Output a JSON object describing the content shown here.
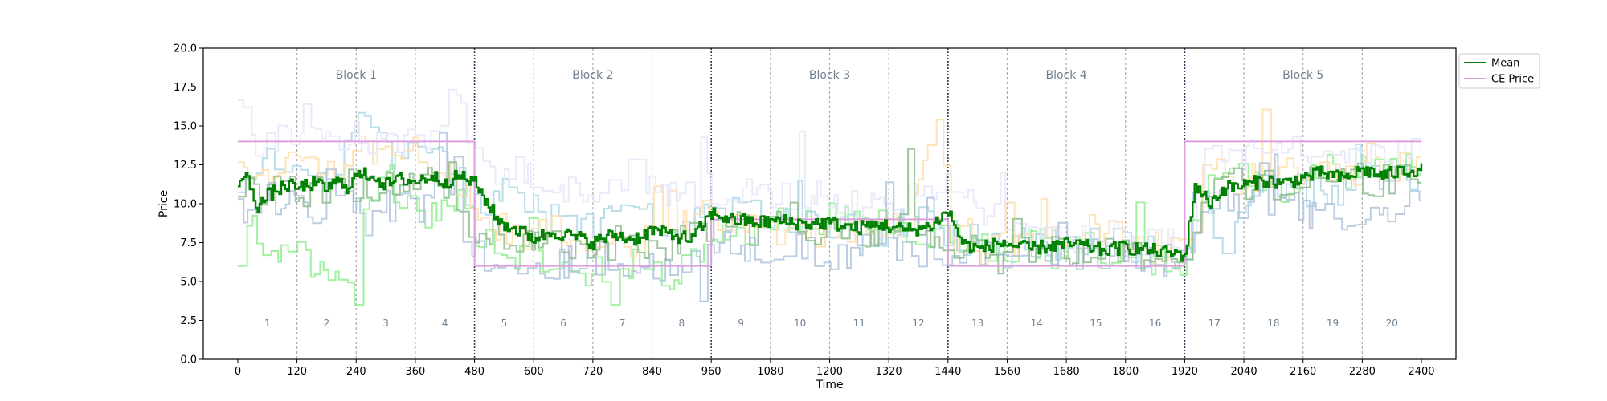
{
  "chart_data": {
    "type": "line",
    "xlabel": "Time",
    "ylabel": "Price",
    "xlim": [
      -70,
      2470
    ],
    "ylim": [
      0,
      20
    ],
    "xticks": [
      0,
      120,
      240,
      360,
      480,
      600,
      720,
      840,
      960,
      1080,
      1200,
      1320,
      1440,
      1560,
      1680,
      1800,
      1920,
      2040,
      2160,
      2280,
      2400
    ],
    "yticks": [
      0.0,
      2.5,
      5.0,
      7.5,
      10.0,
      12.5,
      15.0,
      17.5,
      20.0
    ],
    "ytick_labels": [
      "0.0",
      "2.5",
      "5.0",
      "7.5",
      "10.0",
      "12.5",
      "15.0",
      "17.5",
      "20.0"
    ],
    "grid": false,
    "legend_position": "upper-right-outside",
    "blocks": [
      {
        "label": "Block 1",
        "start": 0,
        "end": 480
      },
      {
        "label": "Block 2",
        "start": 480,
        "end": 960
      },
      {
        "label": "Block 3",
        "start": 960,
        "end": 1440
      },
      {
        "label": "Block 4",
        "start": 1440,
        "end": 1920
      },
      {
        "label": "Block 5",
        "start": 1920,
        "end": 2400
      }
    ],
    "periods": [
      "1",
      "2",
      "3",
      "4",
      "5",
      "6",
      "7",
      "8",
      "9",
      "10",
      "11",
      "12",
      "13",
      "14",
      "15",
      "16",
      "17",
      "18",
      "19",
      "20"
    ],
    "period_length": 120,
    "ce_price": [
      {
        "x": [
          0,
          480
        ],
        "y": [
          14,
          14
        ]
      },
      {
        "x": [
          480,
          960
        ],
        "y": [
          6,
          6
        ]
      },
      {
        "x": [
          960,
          1440
        ],
        "y": [
          9,
          9
        ]
      },
      {
        "x": [
          1440,
          1920
        ],
        "y": [
          6,
          6
        ]
      },
      {
        "x": [
          1920,
          2400
        ],
        "y": [
          14,
          14
        ]
      }
    ],
    "mean_anchors": {
      "x": [
        0,
        20,
        40,
        60,
        80,
        100,
        120,
        150,
        180,
        200,
        220,
        240,
        270,
        300,
        330,
        360,
        390,
        420,
        450,
        480,
        500,
        530,
        560,
        600,
        640,
        680,
        720,
        760,
        800,
        840,
        880,
        920,
        960,
        1000,
        1050,
        1100,
        1150,
        1200,
        1250,
        1300,
        1350,
        1400,
        1440,
        1470,
        1500,
        1550,
        1600,
        1650,
        1700,
        1750,
        1800,
        1850,
        1900,
        1920,
        1940,
        1970,
        2000,
        2040,
        2080,
        2120,
        2160,
        2200,
        2240,
        2280,
        2320,
        2360,
        2400
      ],
      "y": [
        11.5,
        11.6,
        9.8,
        10.5,
        10.9,
        11.2,
        11.0,
        11.3,
        11.0,
        11.4,
        11.1,
        11.8,
        11.9,
        11.2,
        11.6,
        11.4,
        11.8,
        11.4,
        11.8,
        11.3,
        10.3,
        8.8,
        8.4,
        7.8,
        8.2,
        7.9,
        7.5,
        8.0,
        7.7,
        8.3,
        8.0,
        7.7,
        9.4,
        9.0,
        8.8,
        8.9,
        8.7,
        8.8,
        8.4,
        8.7,
        8.3,
        8.5,
        9.5,
        7.4,
        7.1,
        7.5,
        7.1,
        7.3,
        7.4,
        7.0,
        7.2,
        7.0,
        6.8,
        6.7,
        11.2,
        10.0,
        11.0,
        11.2,
        11.5,
        11.3,
        11.7,
        12.0,
        11.6,
        12.2,
        11.8,
        12.1,
        12.2
      ]
    },
    "series": [
      {
        "name": "Mean",
        "color": "#008000"
      },
      {
        "name": "CE Price",
        "color": "#dda0dd"
      }
    ],
    "traders": [
      {
        "color": "#90ee90",
        "anchors": [
          [
            0,
            6.0
          ],
          [
            20,
            8.5
          ],
          [
            60,
            7.2
          ],
          [
            120,
            6.8
          ],
          [
            200,
            5.0
          ],
          [
            240,
            4.0
          ],
          [
            260,
            10.5
          ],
          [
            300,
            12.0
          ],
          [
            360,
            8.5
          ],
          [
            420,
            9.5
          ],
          [
            470,
            10.5
          ],
          [
            480,
            8.0
          ],
          [
            560,
            6.5
          ],
          [
            640,
            6.2
          ],
          [
            720,
            5.6
          ],
          [
            800,
            6.0
          ],
          [
            880,
            5.2
          ],
          [
            960,
            8.2
          ],
          [
            1040,
            8.6
          ],
          [
            1120,
            8.9
          ],
          [
            1200,
            9.2
          ],
          [
            1280,
            8.6
          ],
          [
            1360,
            8.2
          ],
          [
            1440,
            8.0
          ],
          [
            1520,
            7.2
          ],
          [
            1600,
            7.4
          ],
          [
            1680,
            7.4
          ],
          [
            1760,
            7.0
          ],
          [
            1840,
            6.6
          ],
          [
            1920,
            6.2
          ],
          [
            1960,
            11.0
          ],
          [
            2040,
            11.8
          ],
          [
            2120,
            11.0
          ],
          [
            2200,
            12.2
          ],
          [
            2280,
            12.0
          ],
          [
            2360,
            12.4
          ],
          [
            2400,
            12.6
          ]
        ]
      },
      {
        "color": "#add8e6",
        "anchors": [
          [
            0,
            11.0
          ],
          [
            60,
            12.5
          ],
          [
            120,
            11.8
          ],
          [
            200,
            12.5
          ],
          [
            240,
            16.0
          ],
          [
            300,
            13.0
          ],
          [
            360,
            14.0
          ],
          [
            420,
            12.5
          ],
          [
            480,
            10.0
          ],
          [
            560,
            11.0
          ],
          [
            620,
            9.0
          ],
          [
            700,
            8.5
          ],
          [
            760,
            10.0
          ],
          [
            840,
            9.0
          ],
          [
            900,
            8.5
          ],
          [
            960,
            9.0
          ],
          [
            1040,
            9.5
          ],
          [
            1120,
            9.0
          ],
          [
            1200,
            8.7
          ],
          [
            1280,
            8.0
          ],
          [
            1360,
            9.0
          ],
          [
            1440,
            8.0
          ],
          [
            1520,
            7.4
          ],
          [
            1600,
            7.8
          ],
          [
            1680,
            7.2
          ],
          [
            1760,
            7.4
          ],
          [
            1840,
            7.2
          ],
          [
            1920,
            6.8
          ],
          [
            1960,
            11.0
          ],
          [
            2000,
            6.0
          ],
          [
            2040,
            10.5
          ],
          [
            2120,
            11.5
          ],
          [
            2200,
            10.0
          ],
          [
            2280,
            11.5
          ],
          [
            2360,
            11.8
          ],
          [
            2400,
            12.0
          ]
        ]
      },
      {
        "color": "#ffdead",
        "anchors": [
          [
            0,
            12.5
          ],
          [
            60,
            11.0
          ],
          [
            120,
            13.0
          ],
          [
            180,
            12.0
          ],
          [
            240,
            13.5
          ],
          [
            300,
            12.8
          ],
          [
            360,
            13.2
          ],
          [
            420,
            12.5
          ],
          [
            480,
            9.5
          ],
          [
            560,
            8.0
          ],
          [
            640,
            8.5
          ],
          [
            720,
            7.0
          ],
          [
            800,
            7.5
          ],
          [
            880,
            8.0
          ],
          [
            960,
            9.5
          ],
          [
            1040,
            8.2
          ],
          [
            1120,
            8.5
          ],
          [
            1200,
            8.2
          ],
          [
            1280,
            8.6
          ],
          [
            1360,
            9.0
          ],
          [
            1420,
            16.5
          ],
          [
            1440,
            8.0
          ],
          [
            1520,
            7.0
          ],
          [
            1600,
            7.5
          ],
          [
            1680,
            7.8
          ],
          [
            1760,
            8.5
          ],
          [
            1840,
            7.2
          ],
          [
            1920,
            7.0
          ],
          [
            1960,
            12.0
          ],
          [
            2040,
            11.5
          ],
          [
            2120,
            12.0
          ],
          [
            2200,
            12.5
          ],
          [
            2280,
            11.8
          ],
          [
            2360,
            12.5
          ],
          [
            2400,
            12.2
          ]
        ]
      },
      {
        "color": "#e6e6fa",
        "anchors": [
          [
            0,
            17.0
          ],
          [
            40,
            13.0
          ],
          [
            100,
            14.5
          ],
          [
            140,
            16.0
          ],
          [
            200,
            14.5
          ],
          [
            260,
            14.0
          ],
          [
            320,
            13.5
          ],
          [
            380,
            14.0
          ],
          [
            440,
            17.5
          ],
          [
            480,
            12.5
          ],
          [
            560,
            12.0
          ],
          [
            640,
            11.0
          ],
          [
            720,
            10.5
          ],
          [
            800,
            12.0
          ],
          [
            880,
            10.5
          ],
          [
            960,
            11.0
          ],
          [
            1040,
            10.5
          ],
          [
            1120,
            10.2
          ],
          [
            1200,
            10.5
          ],
          [
            1280,
            10.0
          ],
          [
            1360,
            10.2
          ],
          [
            1440,
            11.0
          ],
          [
            1520,
            9.0
          ],
          [
            1600,
            8.5
          ],
          [
            1680,
            7.8
          ],
          [
            1760,
            8.0
          ],
          [
            1840,
            7.6
          ],
          [
            1920,
            7.2
          ],
          [
            1960,
            14.0
          ],
          [
            2040,
            13.0
          ],
          [
            2120,
            13.5
          ],
          [
            2200,
            13.0
          ],
          [
            2280,
            13.2
          ],
          [
            2360,
            13.5
          ],
          [
            2400,
            13.0
          ]
        ]
      },
      {
        "color": "#b0c4de",
        "anchors": [
          [
            0,
            9.5
          ],
          [
            60,
            10.5
          ],
          [
            120,
            9.5
          ],
          [
            200,
            10.0
          ],
          [
            260,
            9.0
          ],
          [
            300,
            11.0
          ],
          [
            360,
            10.0
          ],
          [
            420,
            10.8
          ],
          [
            480,
            7.0
          ],
          [
            560,
            6.5
          ],
          [
            640,
            6.2
          ],
          [
            720,
            6.5
          ],
          [
            800,
            6.0
          ],
          [
            880,
            6.2
          ],
          [
            940,
            4.5
          ],
          [
            960,
            8.0
          ],
          [
            1040,
            7.0
          ],
          [
            1120,
            7.2
          ],
          [
            1200,
            6.5
          ],
          [
            1280,
            7.0
          ],
          [
            1360,
            7.2
          ],
          [
            1420,
            6.0
          ],
          [
            1440,
            7.0
          ],
          [
            1520,
            6.8
          ],
          [
            1600,
            6.5
          ],
          [
            1680,
            6.8
          ],
          [
            1760,
            6.6
          ],
          [
            1840,
            6.5
          ],
          [
            1920,
            6.3
          ],
          [
            1960,
            10.0
          ],
          [
            2040,
            9.5
          ],
          [
            2120,
            10.0
          ],
          [
            2200,
            9.0
          ],
          [
            2280,
            8.5
          ],
          [
            2360,
            10.5
          ],
          [
            2400,
            10.0
          ]
        ]
      },
      {
        "color": "#8fbc8f",
        "anchors": [
          [
            0,
            10.5
          ],
          [
            80,
            11.0
          ],
          [
            160,
            10.8
          ],
          [
            240,
            11.2
          ],
          [
            320,
            11.0
          ],
          [
            400,
            11.5
          ],
          [
            480,
            8.5
          ],
          [
            560,
            7.8
          ],
          [
            640,
            7.5
          ],
          [
            720,
            7.2
          ],
          [
            800,
            7.6
          ],
          [
            880,
            7.4
          ],
          [
            960,
            8.8
          ],
          [
            1040,
            8.4
          ],
          [
            1120,
            8.6
          ],
          [
            1200,
            8.4
          ],
          [
            1280,
            8.2
          ],
          [
            1360,
            8.5
          ],
          [
            1440,
            7.6
          ],
          [
            1520,
            7.0
          ],
          [
            1600,
            7.2
          ],
          [
            1680,
            7.0
          ],
          [
            1760,
            7.0
          ],
          [
            1840,
            6.8
          ],
          [
            1920,
            6.6
          ],
          [
            1980,
            11.5
          ],
          [
            2060,
            11.0
          ],
          [
            2140,
            11.6
          ],
          [
            2220,
            12.0
          ],
          [
            2300,
            11.5
          ],
          [
            2400,
            12.0
          ]
        ]
      }
    ]
  },
  "legend": {
    "mean_label": "Mean",
    "ce_label": "CE Price",
    "mean_color": "#008000",
    "ce_color": "#dda0dd"
  }
}
